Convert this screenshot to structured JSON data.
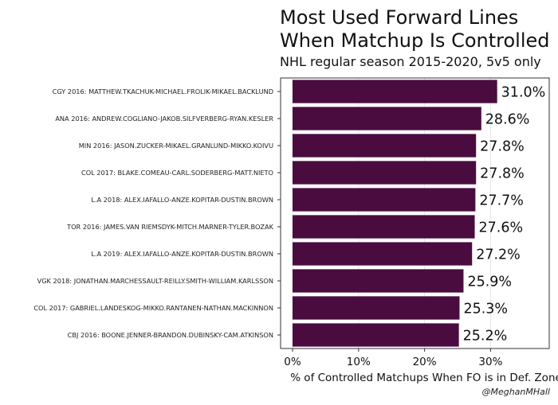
{
  "chart_data": {
    "type": "bar",
    "orientation": "horizontal",
    "title": "Most Used Forward Lines When Matchup Is Controlled",
    "title_lines": [
      "Most Used Forward Lines",
      "When Matchup Is Controlled"
    ],
    "subtitle": "NHL regular season 2015-2020, 5v5 only",
    "xlabel": "% of Controlled Matchups When FO is in Def. Zone",
    "ylabel": "",
    "credit": "@MeghanMHall",
    "xlim": [
      0,
      0.38
    ],
    "xticks": [
      0,
      0.1,
      0.2,
      0.3
    ],
    "xtick_labels": [
      "0%",
      "10%",
      "20%",
      "30%"
    ],
    "grid": true,
    "categories": [
      "CGY 2016: MATTHEW.TKACHUK-MICHAEL.FROLIK-MIKAEL.BACKLUND",
      "ANA 2016: ANDREW.COGLIANO-JAKOB.SILFVERBERG-RYAN.KESLER",
      "MIN 2016: JASON.ZUCKER-MIKAEL.GRANLUND-MIKKO.KOIVU",
      "COL 2017: BLAKE.COMEAU-CARL.SODERBERG-MATT.NIETO",
      "L.A 2018: ALEX.IAFALLO-ANZE.KOPITAR-DUSTIN.BROWN",
      "TOR 2016: JAMES.VAN RIEMSDYK-MITCH.MARNER-TYLER.BOZAK",
      "L.A 2019: ALEX.IAFALLO-ANZE.KOPITAR-DUSTIN.BROWN",
      "VGK 2018: JONATHAN.MARCHESSAULT-REILLY.SMITH-WILLIAM.KARLSSON",
      "COL 2017: GABRIEL.LANDESKOG-MIKKO.RANTANEN-NATHAN.MACKINNON",
      "CBJ 2016: BOONE.JENNER-BRANDON.DUBINSKY-CAM.ATKINSON"
    ],
    "values": [
      0.31,
      0.286,
      0.278,
      0.278,
      0.277,
      0.276,
      0.272,
      0.259,
      0.253,
      0.252
    ],
    "value_labels": [
      "31.0%",
      "28.6%",
      "27.8%",
      "27.8%",
      "27.7%",
      "27.6%",
      "27.2%",
      "25.9%",
      "25.3%",
      "25.2%"
    ],
    "bar_color": "#4a0c3f",
    "grid_color": "#e6e6e6",
    "axis_color": "#333333"
  }
}
